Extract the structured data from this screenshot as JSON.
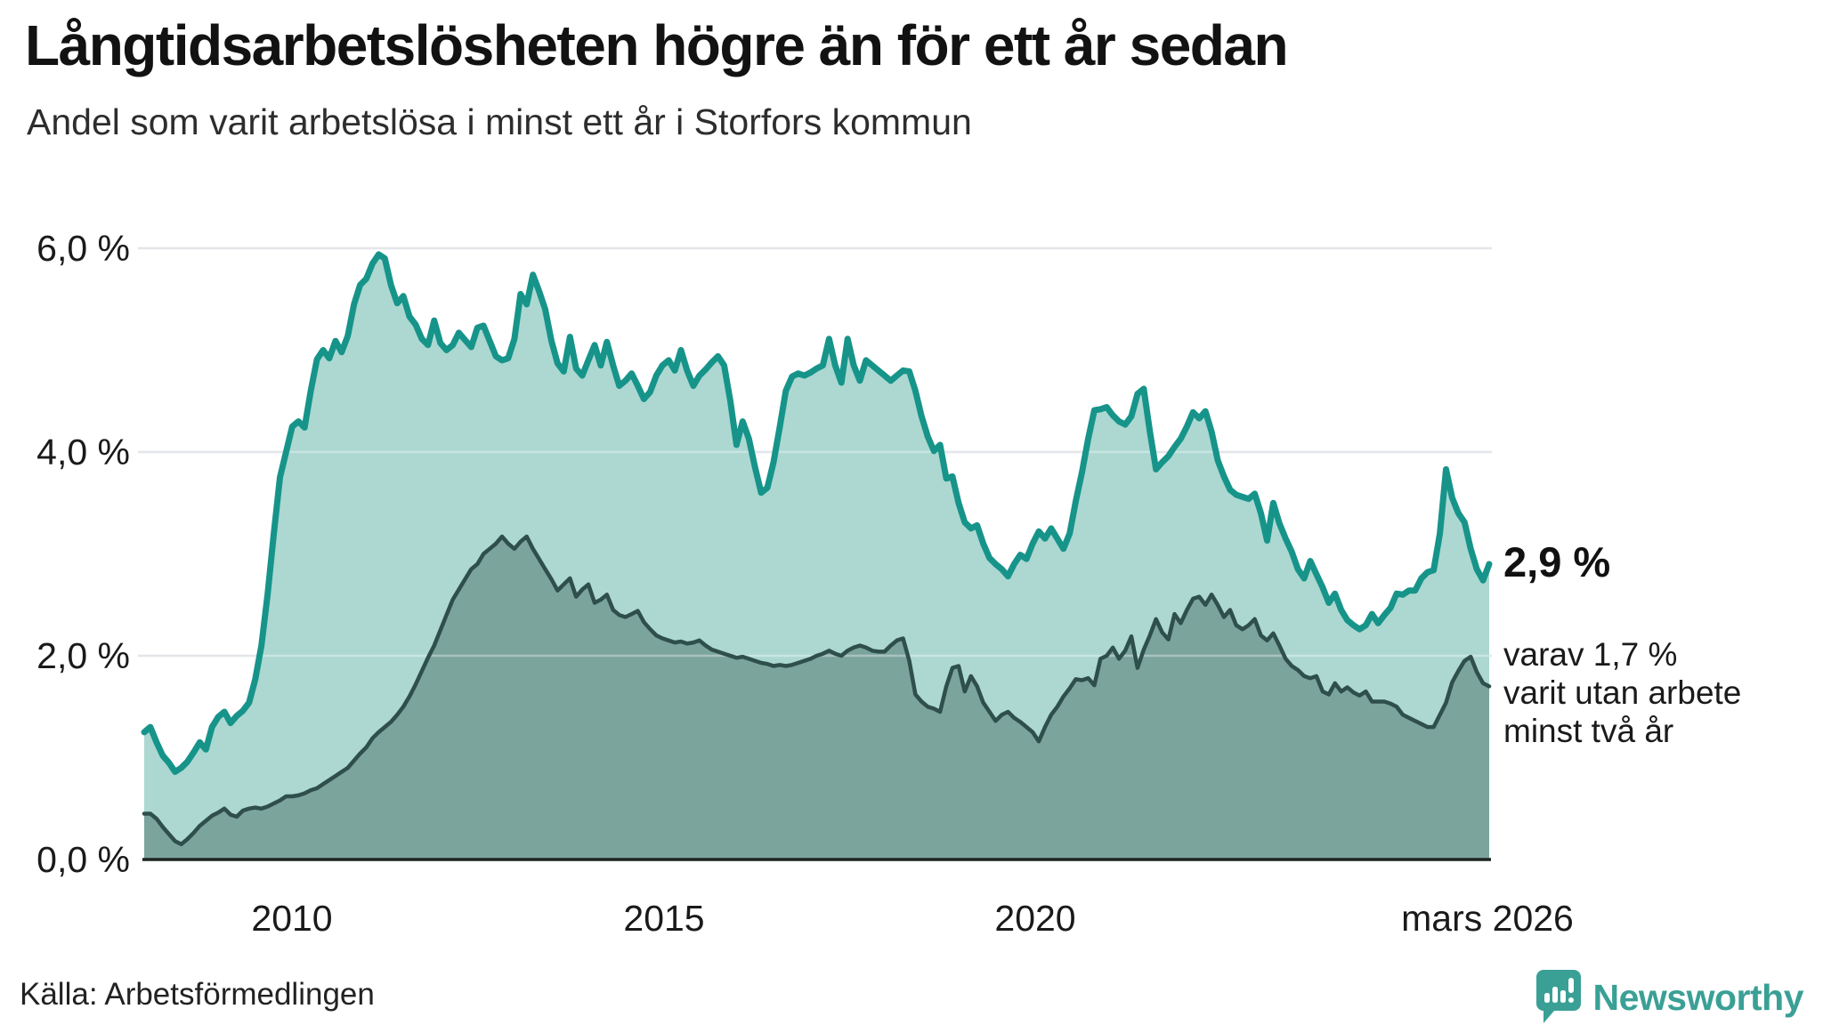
{
  "title": "Långtidsarbetslösheten högre än för ett år sedan",
  "subtitle": "Andel som varit arbetslösa i minst ett år i Storfors kommun",
  "source": "Källa: Arbetsförmedlingen",
  "brand": {
    "name": "Newsworthy"
  },
  "annotations": {
    "latest_value": "2,9 %",
    "secondary_note_lines": [
      "varav 1,7 %",
      "varit utan arbete",
      "minst två år"
    ]
  },
  "axes": {
    "y_ticks": [
      {
        "label": "6,0 %",
        "value": 6
      },
      {
        "label": "4,0 %",
        "value": 4
      },
      {
        "label": "2,0 %",
        "value": 2
      },
      {
        "label": "0,0 %",
        "value": 0
      }
    ],
    "x_ticks": [
      {
        "label": "2010",
        "month_index": 24
      },
      {
        "label": "2015",
        "month_index": 84
      },
      {
        "label": "2020",
        "month_index": 144
      },
      {
        "label": "mars 2026",
        "month_index": 218
      }
    ]
  },
  "colors": {
    "accent_line": "#17948a",
    "accent_fill": "#a9d6cf",
    "dark_line": "#2f4f4b",
    "dark_fill": "#7ba49d",
    "gridline": "#d6d9de",
    "gridline_overlay": "rgba(255,255,255,0.35)",
    "axis": "#1c2422",
    "brand": "#3aa096"
  },
  "chart_data": {
    "type": "area",
    "title": "Långtidsarbetslösheten högre än för ett år sedan",
    "subtitle": "Andel som varit arbetslösa i minst ett år i Storfors kommun",
    "unit": "%",
    "frequency": "monthly",
    "x_start": "2008-01",
    "x_end": "2026-03",
    "ylim": [
      0,
      6
    ],
    "grid": "horizontal",
    "legend_position": "annotated-right",
    "series": [
      {
        "name": "Andel arbetslösa minst ett år",
        "end_label": "2,9 %",
        "values": [
          1.25,
          1.3,
          1.15,
          1.02,
          0.95,
          0.86,
          0.9,
          0.96,
          1.05,
          1.15,
          1.08,
          1.3,
          1.4,
          1.45,
          1.34,
          1.41,
          1.46,
          1.54,
          1.77,
          2.1,
          2.6,
          3.2,
          3.75,
          4.0,
          4.25,
          4.3,
          4.24,
          4.6,
          4.91,
          5.0,
          4.92,
          5.09,
          4.98,
          5.14,
          5.45,
          5.64,
          5.7,
          5.85,
          5.94,
          5.9,
          5.64,
          5.46,
          5.53,
          5.33,
          5.25,
          5.11,
          5.05,
          5.29,
          5.07,
          5.0,
          5.05,
          5.17,
          5.1,
          5.03,
          5.22,
          5.24,
          5.09,
          4.94,
          4.9,
          4.92,
          5.11,
          5.55,
          5.45,
          5.74,
          5.58,
          5.4,
          5.09,
          4.87,
          4.79,
          5.13,
          4.82,
          4.75,
          4.9,
          5.05,
          4.85,
          5.08,
          4.85,
          4.65,
          4.7,
          4.77,
          4.65,
          4.52,
          4.59,
          4.75,
          4.85,
          4.9,
          4.8,
          5.0,
          4.8,
          4.65,
          4.75,
          4.81,
          4.88,
          4.94,
          4.85,
          4.5,
          4.07,
          4.3,
          4.13,
          3.85,
          3.6,
          3.65,
          3.9,
          4.24,
          4.6,
          4.74,
          4.77,
          4.75,
          4.78,
          4.82,
          4.85,
          5.11,
          4.85,
          4.68,
          5.11,
          4.85,
          4.7,
          4.9,
          4.85,
          4.8,
          4.75,
          4.7,
          4.75,
          4.8,
          4.79,
          4.6,
          4.35,
          4.15,
          4.01,
          4.07,
          3.74,
          3.76,
          3.5,
          3.31,
          3.25,
          3.28,
          3.1,
          2.96,
          2.9,
          2.85,
          2.78,
          2.9,
          2.99,
          2.95,
          3.1,
          3.22,
          3.15,
          3.25,
          3.15,
          3.05,
          3.2,
          3.52,
          3.8,
          4.13,
          4.41,
          4.42,
          4.44,
          4.36,
          4.3,
          4.27,
          4.35,
          4.57,
          4.62,
          4.2,
          3.83,
          3.9,
          3.96,
          4.05,
          4.13,
          4.25,
          4.39,
          4.33,
          4.4,
          4.2,
          3.92,
          3.76,
          3.63,
          3.58,
          3.56,
          3.54,
          3.59,
          3.4,
          3.13,
          3.5,
          3.3,
          3.15,
          3.02,
          2.85,
          2.76,
          2.93,
          2.8,
          2.67,
          2.52,
          2.61,
          2.45,
          2.35,
          2.3,
          2.26,
          2.3,
          2.41,
          2.32,
          2.4,
          2.47,
          2.61,
          2.6,
          2.64,
          2.64,
          2.76,
          2.82,
          2.84,
          3.2,
          3.83,
          3.55,
          3.4,
          3.31,
          3.05,
          2.85,
          2.74,
          2.9
        ]
      },
      {
        "name": "Andel utan arbete minst två år",
        "end_label": "varav 1,7 % varit utan arbete minst två år",
        "values": [
          0.45,
          0.45,
          0.4,
          0.32,
          0.25,
          0.18,
          0.15,
          0.2,
          0.26,
          0.33,
          0.38,
          0.43,
          0.46,
          0.5,
          0.44,
          0.42,
          0.48,
          0.5,
          0.51,
          0.5,
          0.52,
          0.55,
          0.58,
          0.62,
          0.62,
          0.63,
          0.65,
          0.68,
          0.7,
          0.74,
          0.78,
          0.82,
          0.86,
          0.9,
          0.97,
          1.04,
          1.1,
          1.19,
          1.25,
          1.3,
          1.35,
          1.42,
          1.5,
          1.6,
          1.72,
          1.85,
          1.98,
          2.1,
          2.25,
          2.4,
          2.55,
          2.65,
          2.75,
          2.85,
          2.9,
          3.0,
          3.05,
          3.1,
          3.17,
          3.1,
          3.05,
          3.12,
          3.17,
          3.05,
          2.95,
          2.85,
          2.75,
          2.64,
          2.7,
          2.76,
          2.58,
          2.65,
          2.7,
          2.52,
          2.55,
          2.6,
          2.45,
          2.4,
          2.38,
          2.41,
          2.44,
          2.33,
          2.26,
          2.2,
          2.17,
          2.15,
          2.13,
          2.14,
          2.12,
          2.13,
          2.15,
          2.1,
          2.06,
          2.04,
          2.02,
          2.0,
          1.98,
          1.99,
          1.97,
          1.95,
          1.93,
          1.92,
          1.9,
          1.91,
          1.9,
          1.91,
          1.93,
          1.95,
          1.97,
          2.0,
          2.02,
          2.05,
          2.02,
          2.0,
          2.05,
          2.08,
          2.1,
          2.08,
          2.05,
          2.04,
          2.04,
          2.1,
          2.15,
          2.17,
          1.95,
          1.62,
          1.55,
          1.5,
          1.48,
          1.45,
          1.7,
          1.88,
          1.9,
          1.65,
          1.8,
          1.7,
          1.54,
          1.45,
          1.36,
          1.42,
          1.45,
          1.39,
          1.35,
          1.3,
          1.25,
          1.16,
          1.3,
          1.42,
          1.5,
          1.6,
          1.68,
          1.77,
          1.76,
          1.78,
          1.71,
          1.97,
          2.0,
          2.08,
          1.97,
          2.05,
          2.19,
          1.88,
          2.06,
          2.2,
          2.36,
          2.23,
          2.16,
          2.41,
          2.32,
          2.45,
          2.56,
          2.58,
          2.5,
          2.6,
          2.5,
          2.38,
          2.45,
          2.3,
          2.26,
          2.3,
          2.36,
          2.2,
          2.15,
          2.22,
          2.1,
          1.97,
          1.9,
          1.86,
          1.8,
          1.78,
          1.8,
          1.65,
          1.62,
          1.73,
          1.65,
          1.69,
          1.64,
          1.61,
          1.65,
          1.55,
          1.55,
          1.55,
          1.53,
          1.5,
          1.42,
          1.39,
          1.36,
          1.33,
          1.3,
          1.3,
          1.42,
          1.54,
          1.74,
          1.85,
          1.95,
          1.99,
          1.84,
          1.73,
          1.7
        ]
      }
    ]
  }
}
